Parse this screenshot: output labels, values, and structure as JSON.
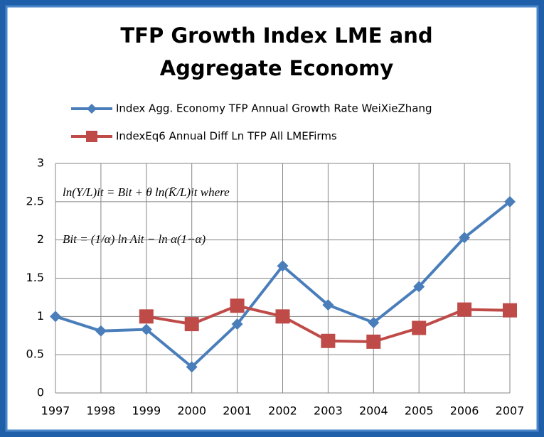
{
  "chart_data": {
    "type": "line",
    "title": [
      "TFP Growth Index LME and",
      "Aggregate Economy"
    ],
    "annotations": [
      "ln(Y/L)it = Bit + θ ln(K̄/L)it   where",
      "Bit = (1/α) ln Ait − ln α(1−α)"
    ],
    "categories": [
      "1997",
      "1998",
      "1999",
      "2000",
      "2001",
      "2002",
      "2003",
      "2004",
      "2005",
      "2006",
      "2007"
    ],
    "series": [
      {
        "name": "Index Agg. Economy TFP Annual Growth Rate WeiXieZhang",
        "color": "#4a7ebb",
        "marker": "diamond",
        "values": [
          1.0,
          0.81,
          0.83,
          0.34,
          0.9,
          1.66,
          1.15,
          0.92,
          1.39,
          2.03,
          2.5
        ]
      },
      {
        "name": "IndexEq6 Annual Diff Ln TFP All LMEFirms",
        "color": "#be4b48",
        "marker": "square",
        "values": [
          null,
          null,
          1.0,
          0.9,
          1.14,
          1.0,
          0.68,
          0.67,
          0.85,
          1.09,
          1.08
        ]
      }
    ],
    "ylim": [
      0,
      3
    ],
    "yticks": [
      0,
      0.5,
      1,
      1.5,
      2,
      2.5,
      3
    ],
    "grid": true
  }
}
